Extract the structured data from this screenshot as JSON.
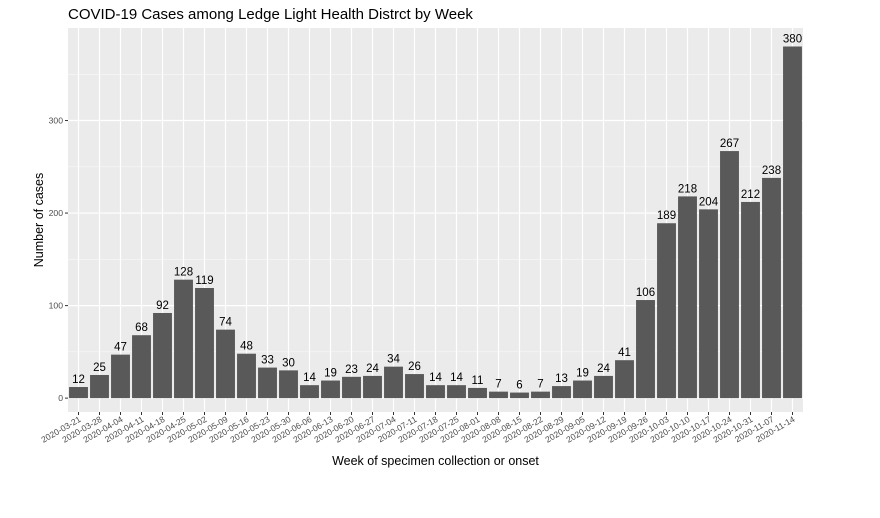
{
  "chart_data": {
    "type": "bar",
    "title": "COVID-19 Cases among Ledge Light Health Distrct by Week",
    "xlabel": "Week of specimen collection or onset",
    "ylabel": "Number of cases",
    "ylim": [
      -15,
      400
    ],
    "yticks": [
      0,
      100,
      200,
      300
    ],
    "grid": true,
    "colors": {
      "panel": "#ebebeb",
      "grid_major": "#ffffff",
      "bar": "#595959",
      "text": "#000000",
      "tick_text": "#4d4d4d"
    },
    "categories": [
      "2020-03-21",
      "2020-03-28",
      "2020-04-04",
      "2020-04-11",
      "2020-04-18",
      "2020-04-25",
      "2020-05-02",
      "2020-05-09",
      "2020-05-16",
      "2020-05-23",
      "2020-05-30",
      "2020-06-06",
      "2020-06-13",
      "2020-06-20",
      "2020-06-27",
      "2020-07-04",
      "2020-07-11",
      "2020-07-18",
      "2020-07-25",
      "2020-08-01",
      "2020-08-08",
      "2020-08-15",
      "2020-08-22",
      "2020-08-29",
      "2020-09-05",
      "2020-09-12",
      "2020-09-19",
      "2020-09-26",
      "2020-10-03",
      "2020-10-10",
      "2020-10-17",
      "2020-10-24",
      "2020-10-31",
      "2020-11-07",
      "2020-11-14"
    ],
    "values": [
      12,
      25,
      47,
      68,
      92,
      128,
      119,
      74,
      48,
      33,
      30,
      14,
      19,
      23,
      24,
      34,
      26,
      14,
      14,
      11,
      7,
      6,
      7,
      13,
      19,
      24,
      41,
      106,
      189,
      218,
      204,
      267,
      212,
      238,
      380
    ]
  }
}
